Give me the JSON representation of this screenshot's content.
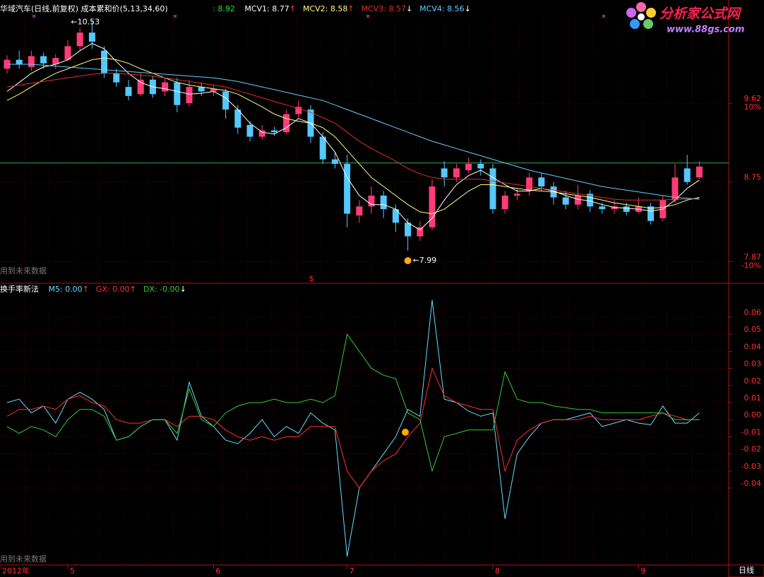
{
  "logo": {
    "name": "分析家公式网",
    "url": "www.88gs.com"
  },
  "chart_data": [
    {
      "type": "candlestick",
      "title": "华域汽车(日线,前复权) 成本累和价(5,13,34,60)",
      "close_label": ": 8.92",
      "warning": "用到未来数据",
      "signal_label": "$",
      "period_label": "日线",
      "max_label": "←10.53",
      "min_label": "←7.99",
      "categories": [
        "2012年",
        null,
        null,
        null,
        null,
        "5",
        null,
        null,
        null,
        null,
        null,
        null,
        null,
        null,
        null,
        null,
        null,
        "6",
        null,
        null,
        null,
        null,
        null,
        null,
        null,
        null,
        null,
        null,
        "7",
        null,
        null,
        null,
        null,
        null,
        null,
        null,
        null,
        null,
        null,
        null,
        "8",
        null,
        null,
        null,
        null,
        null,
        null,
        null,
        null,
        null,
        null,
        null,
        "9",
        null,
        null,
        null,
        null,
        null
      ],
      "open": [
        10.0,
        10.1,
        10.02,
        10.14,
        10.05,
        10.1,
        10.25,
        10.4,
        10.2,
        9.95,
        9.8,
        9.72,
        9.88,
        9.75,
        9.85,
        9.62,
        9.8,
        9.75,
        9.75,
        9.55,
        9.38,
        9.25,
        9.32,
        9.3,
        9.5,
        9.55,
        9.25,
        9.0,
        8.95,
        8.38,
        8.48,
        8.6,
        8.45,
        8.3,
        8.15,
        8.25,
        8.9,
        8.8,
        8.88,
        8.95,
        8.9,
        8.45,
        8.6,
        8.65,
        8.8,
        8.7,
        8.58,
        8.5,
        8.62,
        8.48,
        8.45,
        8.48,
        8.42,
        8.48,
        8.35,
        8.55,
        8.9,
        8.8
      ],
      "high": [
        10.15,
        10.2,
        10.2,
        10.18,
        10.16,
        10.32,
        10.45,
        10.53,
        10.25,
        10.0,
        9.88,
        9.95,
        9.92,
        9.9,
        9.9,
        9.88,
        9.85,
        9.82,
        9.78,
        9.6,
        9.42,
        9.38,
        9.36,
        9.55,
        9.65,
        9.6,
        9.3,
        9.08,
        9.05,
        8.55,
        8.7,
        8.65,
        8.5,
        8.35,
        8.32,
        8.78,
        8.98,
        8.95,
        9.02,
        9.0,
        8.95,
        8.65,
        8.68,
        8.85,
        8.85,
        8.75,
        8.65,
        8.72,
        8.66,
        8.52,
        8.55,
        8.52,
        8.58,
        8.52,
        8.6,
        8.95,
        9.05,
        8.98
      ],
      "low": [
        9.95,
        10.0,
        9.98,
        10.0,
        10.0,
        10.08,
        10.2,
        10.22,
        9.9,
        9.8,
        9.65,
        9.7,
        9.68,
        9.7,
        9.52,
        9.58,
        9.7,
        9.7,
        9.45,
        9.28,
        9.2,
        9.22,
        9.26,
        9.28,
        9.45,
        9.18,
        8.95,
        8.9,
        8.25,
        8.3,
        8.4,
        8.35,
        8.2,
        7.99,
        8.1,
        8.22,
        8.7,
        8.75,
        8.85,
        8.82,
        8.4,
        8.4,
        8.55,
        8.6,
        8.65,
        8.5,
        8.45,
        8.45,
        8.42,
        8.4,
        8.4,
        8.38,
        8.4,
        8.28,
        8.32,
        8.52,
        8.72,
        8.78
      ],
      "close": [
        10.1,
        10.05,
        10.14,
        10.06,
        10.12,
        10.25,
        10.4,
        10.3,
        9.95,
        9.85,
        9.7,
        9.88,
        9.72,
        9.85,
        9.6,
        9.8,
        9.75,
        9.78,
        9.55,
        9.35,
        9.25,
        9.32,
        9.3,
        9.5,
        9.58,
        9.25,
        9.0,
        8.95,
        8.4,
        8.48,
        8.6,
        8.45,
        8.3,
        8.15,
        8.25,
        8.7,
        8.8,
        8.9,
        8.95,
        8.9,
        8.45,
        8.6,
        8.62,
        8.8,
        8.7,
        8.58,
        8.5,
        8.6,
        8.48,
        8.45,
        8.48,
        8.42,
        8.48,
        8.32,
        8.55,
        8.8,
        8.75,
        8.92
      ],
      "up_color": "#ff3c78",
      "down_color": "#54c8ff",
      "series": [
        {
          "name": "MCV1: 8.77",
          "arrow": "↑",
          "arrow_color": "#ff4040",
          "color": "#ffffff",
          "values": [
            9.75,
            9.85,
            9.95,
            10.02,
            10.05,
            10.1,
            10.2,
            10.28,
            10.22,
            10.08,
            9.95,
            9.85,
            9.8,
            9.78,
            9.75,
            9.72,
            9.73,
            9.75,
            9.68,
            9.55,
            9.4,
            9.3,
            9.28,
            9.35,
            9.45,
            9.4,
            9.25,
            9.08,
            8.8,
            8.6,
            8.5,
            8.5,
            8.45,
            8.3,
            8.22,
            8.35,
            8.55,
            8.72,
            8.82,
            8.88,
            8.8,
            8.72,
            8.65,
            8.65,
            8.68,
            8.65,
            8.6,
            8.56,
            8.54,
            8.5,
            8.47,
            8.46,
            8.45,
            8.43,
            8.45,
            8.55,
            8.68,
            8.77
          ]
        },
        {
          "name": "MCV2: 8.58",
          "arrow": "↑",
          "arrow_color": "#ff4040",
          "color": "#ffff80",
          "values": [
            9.65,
            9.72,
            9.8,
            9.88,
            9.95,
            10.0,
            10.05,
            10.1,
            10.12,
            10.1,
            10.06,
            10.0,
            9.95,
            9.9,
            9.85,
            9.82,
            9.8,
            9.78,
            9.76,
            9.72,
            9.65,
            9.58,
            9.5,
            9.45,
            9.42,
            9.4,
            9.35,
            9.25,
            9.1,
            8.95,
            8.8,
            8.7,
            8.6,
            8.5,
            8.42,
            8.4,
            8.45,
            8.55,
            8.65,
            8.72,
            8.72,
            8.7,
            8.68,
            8.66,
            8.65,
            8.64,
            8.62,
            8.6,
            8.58,
            8.55,
            8.52,
            8.5,
            8.48,
            8.46,
            8.47,
            8.5,
            8.55,
            8.58
          ]
        },
        {
          "name": "MCV3: 8.57",
          "arrow": "↓",
          "arrow_color": "#ffffff",
          "color": "#e03030",
          "values": [
            9.8,
            9.82,
            9.84,
            9.86,
            9.88,
            9.9,
            9.92,
            9.94,
            9.95,
            9.95,
            9.94,
            9.93,
            9.92,
            9.9,
            9.88,
            9.86,
            9.84,
            9.82,
            9.8,
            9.76,
            9.72,
            9.68,
            9.64,
            9.6,
            9.56,
            9.52,
            9.46,
            9.4,
            9.3,
            9.2,
            9.12,
            9.05,
            8.98,
            8.9,
            8.84,
            8.8,
            8.78,
            8.78,
            8.78,
            8.78,
            8.76,
            8.74,
            8.72,
            8.7,
            8.68,
            8.66,
            8.64,
            8.62,
            8.6,
            8.58,
            8.56,
            8.55,
            8.55,
            8.55,
            8.55,
            8.56,
            8.56,
            8.57
          ]
        },
        {
          "name": "MCV4: 8.56",
          "arrow": "↓",
          "arrow_color": "#ffffff",
          "color": "#66ccff",
          "values": [
            10.05,
            10.05,
            10.05,
            10.04,
            10.03,
            10.02,
            10.01,
            10.0,
            9.99,
            9.98,
            9.97,
            9.96,
            9.95,
            9.94,
            9.93,
            9.92,
            9.91,
            9.9,
            9.88,
            9.86,
            9.83,
            9.8,
            9.77,
            9.74,
            9.71,
            9.68,
            9.65,
            9.6,
            9.55,
            9.5,
            9.45,
            9.4,
            9.35,
            9.3,
            9.25,
            9.2,
            9.16,
            9.12,
            9.08,
            9.04,
            9.0,
            8.96,
            8.92,
            8.88,
            8.85,
            8.82,
            8.79,
            8.76,
            8.73,
            8.7,
            8.68,
            8.66,
            8.64,
            8.62,
            8.6,
            8.58,
            8.57,
            8.56
          ]
        }
      ],
      "reference_line": 8.96,
      "ylim": [
        7.64,
        10.76
      ],
      "yticks": [
        9.62,
        8.75,
        7.87
      ],
      "pct_labels": [
        "10%",
        "-10%"
      ]
    },
    {
      "type": "line",
      "title": "换手率新法",
      "warning": "用到未来数据",
      "series": [
        {
          "name": "M5: 0.00",
          "arrow": "↑",
          "arrow_color": "#ff4040",
          "color": "#66ddff",
          "values": [
            0.01,
            0.012,
            0.004,
            0.008,
            -0.002,
            0.012,
            0.016,
            0.012,
            0.006,
            -0.012,
            -0.01,
            -0.004,
            0.0,
            0.0,
            -0.012,
            0.022,
            0.002,
            -0.004,
            -0.012,
            -0.014,
            -0.008,
            0.0,
            -0.01,
            -0.004,
            -0.008,
            0.004,
            -0.002,
            -0.006,
            -0.08,
            -0.04,
            -0.03,
            -0.02,
            -0.01,
            0.006,
            0.002,
            0.07,
            0.012,
            0.01,
            0.005,
            0.002,
            0.004,
            -0.058,
            -0.02,
            -0.01,
            -0.002,
            0.0,
            0.0,
            0.002,
            0.004,
            -0.004,
            -0.002,
            0.0,
            -0.002,
            -0.003,
            0.008,
            -0.002,
            -0.002,
            0.004
          ]
        },
        {
          "name": "GX: 0.00",
          "arrow": "↑",
          "arrow_color": "#ff4040",
          "color": "#ff3030",
          "values": [
            0.002,
            0.006,
            0.006,
            0.008,
            0.006,
            0.012,
            0.014,
            0.01,
            0.008,
            0.0,
            -0.002,
            -0.002,
            0.0,
            0.0,
            -0.004,
            0.002,
            0.002,
            0.0,
            -0.006,
            -0.01,
            -0.012,
            -0.01,
            -0.012,
            -0.01,
            -0.01,
            -0.004,
            -0.004,
            -0.004,
            -0.03,
            -0.04,
            -0.03,
            -0.024,
            -0.02,
            -0.01,
            -0.002,
            0.03,
            0.014,
            0.01,
            0.008,
            0.006,
            0.006,
            -0.03,
            -0.012,
            -0.006,
            -0.002,
            0.0,
            0.0,
            0.0,
            0.002,
            0.0,
            0.0,
            0.0,
            0.0,
            0.002,
            0.004,
            0.002,
            0.0,
            0.0
          ]
        },
        {
          "name": "DX: -0.00",
          "arrow": "↓",
          "arrow_color": "#ffffff",
          "color": "#33cc33",
          "values": [
            -0.004,
            -0.008,
            -0.004,
            -0.006,
            -0.01,
            0.0,
            0.006,
            0.006,
            0.002,
            -0.012,
            -0.01,
            -0.004,
            0.0,
            0.0,
            -0.008,
            0.018,
            0.0,
            -0.004,
            0.004,
            0.008,
            0.01,
            0.01,
            0.012,
            0.01,
            0.01,
            0.012,
            0.01,
            0.014,
            0.05,
            0.04,
            0.03,
            0.026,
            0.024,
            0.004,
            0.0,
            -0.03,
            -0.01,
            -0.008,
            -0.006,
            -0.006,
            -0.006,
            0.028,
            0.012,
            0.01,
            0.01,
            0.008,
            0.007,
            0.006,
            0.006,
            0.004,
            0.004,
            0.004,
            0.004,
            0.004,
            0.004,
            0.0,
            0.0,
            0.0
          ]
        }
      ],
      "ylim": [
        -0.085,
        0.079
      ],
      "yticks": [
        0.06,
        0.05,
        0.04,
        0.03,
        0.02,
        0.01,
        {
          "value": 0,
          "label": "0.00"
        },
        -0.01,
        -0.02,
        -0.03,
        -0.04
      ]
    }
  ]
}
